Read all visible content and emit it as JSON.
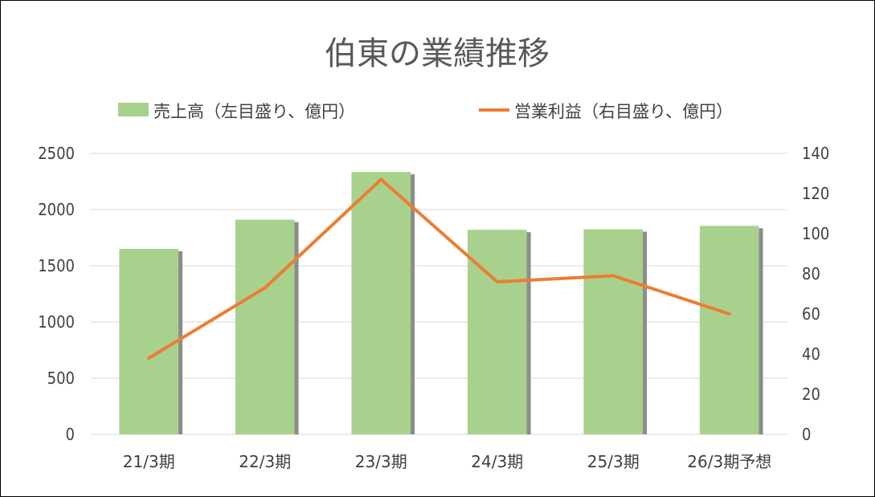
{
  "chart_data": {
    "type": "bar",
    "title": "伯東の業績推移",
    "categories": [
      "21/3期",
      "22/3期",
      "23/3期",
      "24/3期",
      "25/3期",
      "26/3期予想"
    ],
    "series": [
      {
        "name": "売上高（左目盛り、億円）",
        "type": "bar",
        "axis": "left",
        "color": "#a9d18e",
        "shadow_color": "#8c8c8c",
        "values": [
          1650,
          1910,
          2335,
          1820,
          1825,
          1855
        ]
      },
      {
        "name": "営業利益（右目盛り、億円）",
        "type": "line",
        "axis": "right",
        "color": "#ed7d31",
        "values": [
          38,
          73,
          127,
          76,
          79,
          60
        ]
      }
    ],
    "y_left": {
      "min": 0,
      "max": 2500,
      "ticks": [
        "0",
        "500",
        "1000",
        "1500",
        "2000",
        "2500"
      ]
    },
    "y_right": {
      "min": 0,
      "max": 140,
      "ticks": [
        "0",
        "20",
        "40",
        "60",
        "80",
        "100",
        "120",
        "140"
      ]
    },
    "grid": true,
    "grid_color": "#d9d9d9",
    "legend_position": "top"
  }
}
